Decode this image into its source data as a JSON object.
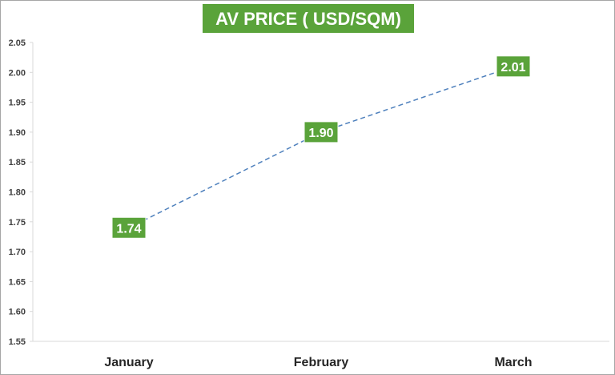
{
  "chart_data": {
    "type": "line",
    "title": "AV PRICE ( USD/SQM)",
    "categories": [
      "January",
      "February",
      "March"
    ],
    "series": [
      {
        "values": [
          1.74,
          1.9,
          2.01
        ],
        "data_labels": [
          "1.74",
          "1.90",
          "2.01"
        ]
      }
    ],
    "ylim": [
      1.55,
      2.05
    ],
    "yticks": [
      "1.55",
      "1.60",
      "1.65",
      "1.70",
      "1.75",
      "1.80",
      "1.85",
      "1.90",
      "1.95",
      "2.00",
      "2.05"
    ],
    "grid": false,
    "legend": "none",
    "line_style": "dashed",
    "colors": {
      "line": "#4f81bd",
      "label_bg": "#5aa33a",
      "title_bg": "#5aa33a",
      "axis": "#d9d9d9"
    }
  }
}
